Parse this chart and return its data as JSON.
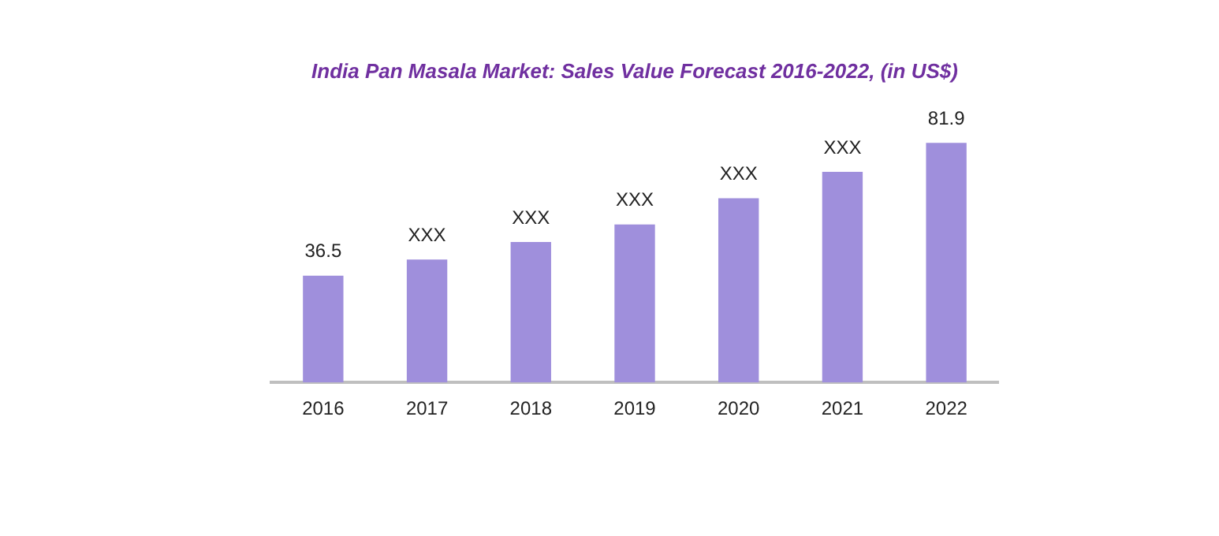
{
  "chart_data": {
    "type": "bar",
    "title": "India Pan Masala Market: Sales Value Forecast 2016-2022, (in US$)",
    "categories": [
      "2016",
      "2017",
      "2018",
      "2019",
      "2020",
      "2021",
      "2022"
    ],
    "values": [
      36.5,
      42,
      48,
      54,
      63,
      72,
      81.9
    ],
    "value_labels": [
      "36.5",
      "XXX",
      "XXX",
      "XXX",
      "XXX",
      "XXX",
      "81.9"
    ],
    "color": "#9f8fdc",
    "tick_labels": "x",
    "grid": false,
    "legend": false
  }
}
